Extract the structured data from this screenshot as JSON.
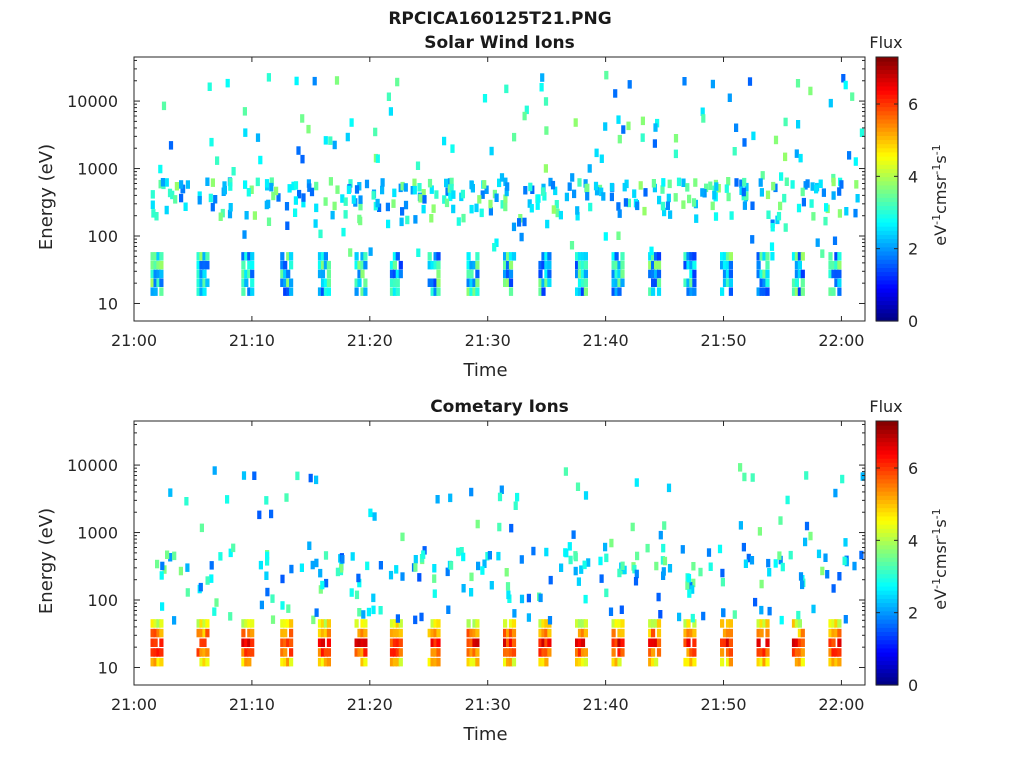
{
  "figure": {
    "title": "RPCICA160125T21.PNG"
  },
  "colormap": "jet",
  "chart_data": [
    {
      "type": "heatmap",
      "title": "Solar Wind Ions",
      "xlabel": "Time",
      "ylabel": "Energy (eV)",
      "xticks": [
        "21:00",
        "21:10",
        "21:20",
        "21:30",
        "21:40",
        "21:50",
        "22:00"
      ],
      "xlim": [
        "21:00",
        "22:02"
      ],
      "yscale": "log",
      "ylim": [
        5.5,
        45000
      ],
      "yticks": [
        10,
        100,
        1000,
        10000
      ],
      "yticklabels": [
        "10",
        "100",
        "1000",
        "10000"
      ],
      "colorbar": {
        "label": "Flux",
        "units": "eV-1cm-2sr-1s-1",
        "range": [
          0,
          7.3
        ],
        "ticks": [
          0,
          2,
          4,
          6
        ]
      },
      "sweep_start_minutes": [
        1.4,
        5.3,
        9.1,
        12.4,
        15.6,
        18.7,
        21.7,
        24.9,
        28.2,
        31.3,
        34.3,
        37.4,
        40.5,
        43.6,
        46.6,
        49.7,
        52.8,
        55.8,
        58.9
      ],
      "low_energy_band": {
        "energy_range_eV": [
          15,
          50
        ],
        "typical_flux": 2.6
      },
      "scattered_counts": {
        "energy_range_eV": [
          50,
          25000
        ],
        "typical_flux": 2.5
      }
    },
    {
      "type": "heatmap",
      "title": "Cometary Ions",
      "xlabel": "Time",
      "ylabel": "Energy (eV)",
      "xticks": [
        "21:00",
        "21:10",
        "21:20",
        "21:30",
        "21:40",
        "21:50",
        "22:00"
      ],
      "xlim": [
        "21:00",
        "22:02"
      ],
      "yscale": "log",
      "ylim": [
        5.5,
        45000
      ],
      "yticks": [
        10,
        100,
        1000,
        10000
      ],
      "yticklabels": [
        "10",
        "100",
        "1000",
        "10000"
      ],
      "colorbar": {
        "label": "Flux",
        "units": "eV-1cm-2sr-1s-1",
        "range": [
          0,
          7.3
        ],
        "ticks": [
          0,
          2,
          4,
          6
        ]
      },
      "sweep_start_minutes": [
        1.4,
        5.3,
        9.1,
        12.4,
        15.6,
        18.7,
        21.7,
        24.9,
        28.2,
        31.3,
        34.3,
        37.4,
        40.5,
        43.6,
        46.6,
        49.7,
        52.8,
        55.8,
        58.9
      ],
      "low_energy_band": {
        "energy_range_eV": [
          12,
          45
        ],
        "peak_flux": 6.4
      },
      "scattered_counts": {
        "energy_range_eV": [
          50,
          10000
        ],
        "typical_flux": 2.4
      }
    }
  ]
}
